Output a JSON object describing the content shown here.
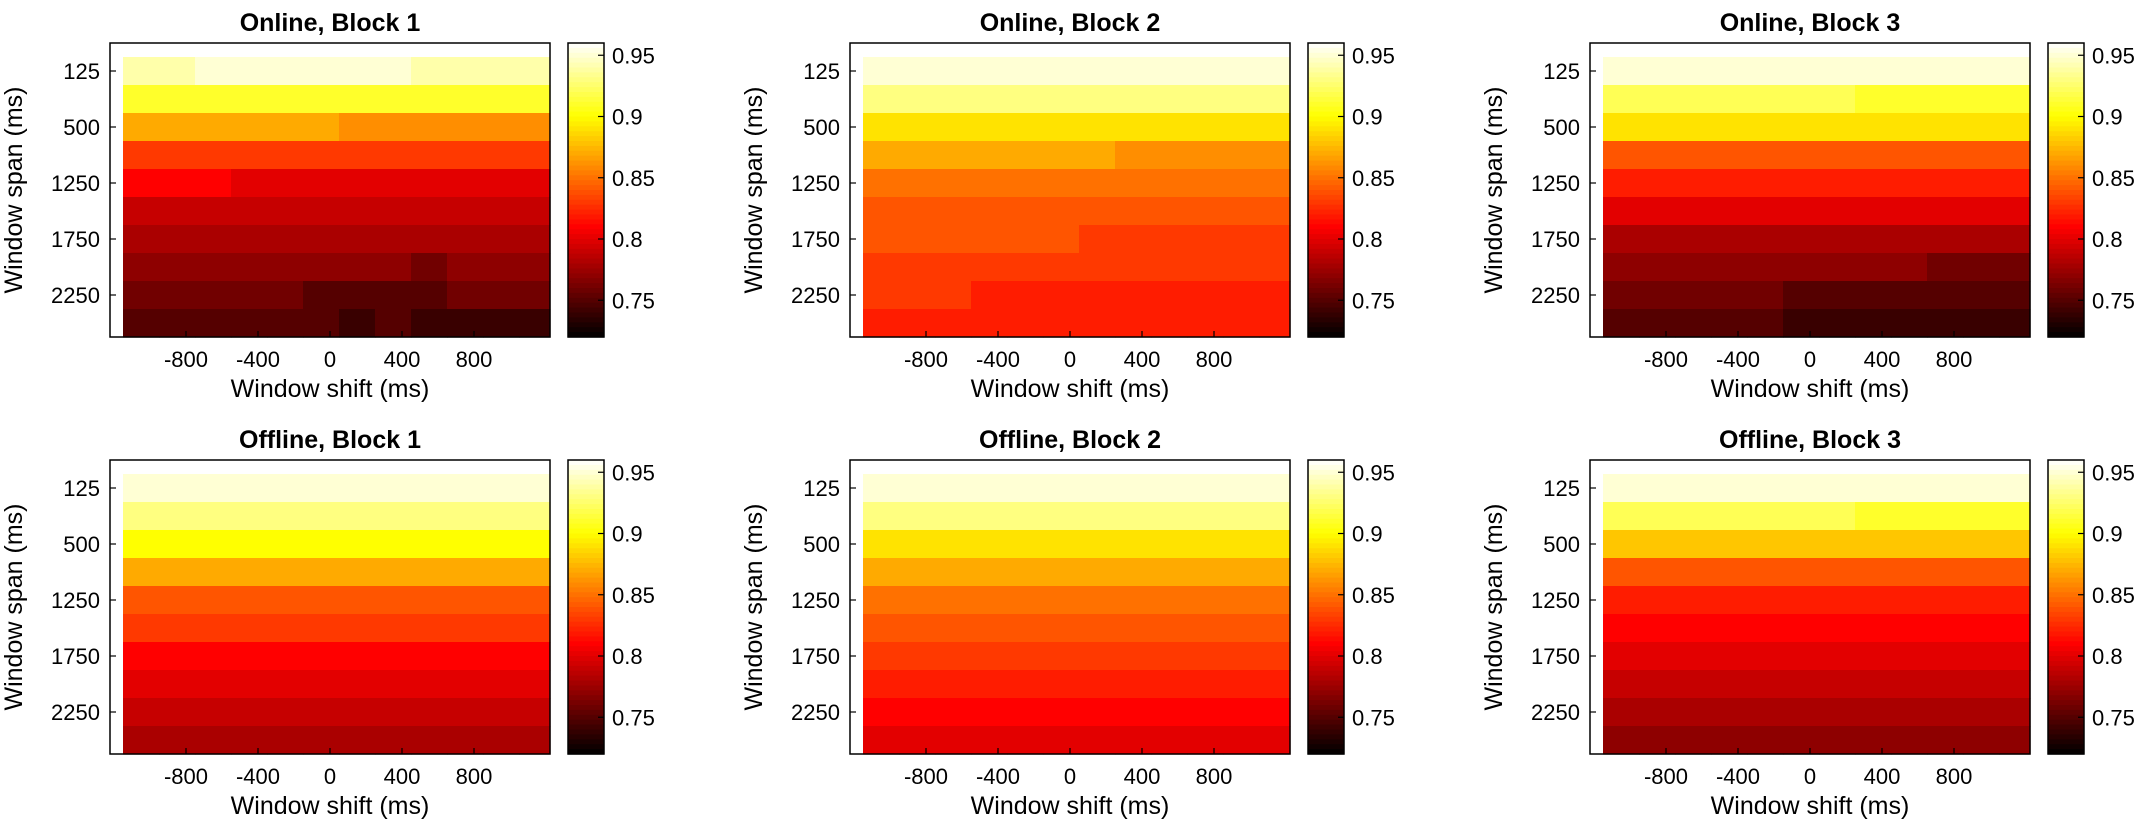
{
  "chart_data": [
    {
      "type": "heatmap",
      "title": "Online, Block 1",
      "xlabel": "Window shift (ms)",
      "ylabel": "Window span (ms)",
      "x_ticks": [
        "-800",
        "-400",
        "0",
        "400",
        "800"
      ],
      "y_ticks": [
        "125",
        "500",
        "1250",
        "1750",
        "2250"
      ],
      "colorbar_ticks": [
        "0.95",
        "0.9",
        "0.85",
        "0.8",
        "0.75"
      ],
      "colormap": "hot",
      "clim": [
        0.72,
        0.96
      ],
      "x": [
        -1050,
        -850,
        -650,
        -450,
        -250,
        -50,
        150,
        350,
        550,
        750,
        950,
        1150
      ],
      "rows": [
        [
          0.96,
          0.96,
          0.96,
          0.96,
          0.96,
          0.96,
          0.96,
          0.96,
          0.96,
          0.96,
          0.96,
          0.96
        ],
        [
          0.94,
          0.94,
          0.95,
          0.95,
          0.95,
          0.95,
          0.95,
          0.95,
          0.94,
          0.94,
          0.94,
          0.94
        ],
        [
          0.91,
          0.91,
          0.91,
          0.91,
          0.91,
          0.91,
          0.91,
          0.91,
          0.91,
          0.91,
          0.91,
          0.91
        ],
        [
          0.87,
          0.87,
          0.87,
          0.87,
          0.87,
          0.87,
          0.86,
          0.86,
          0.86,
          0.86,
          0.86,
          0.86
        ],
        [
          0.83,
          0.83,
          0.83,
          0.83,
          0.83,
          0.83,
          0.83,
          0.83,
          0.83,
          0.83,
          0.83,
          0.83
        ],
        [
          0.81,
          0.81,
          0.81,
          0.8,
          0.8,
          0.8,
          0.8,
          0.8,
          0.8,
          0.8,
          0.8,
          0.8
        ],
        [
          0.79,
          0.79,
          0.79,
          0.79,
          0.79,
          0.79,
          0.79,
          0.79,
          0.79,
          0.79,
          0.79,
          0.79
        ],
        [
          0.78,
          0.78,
          0.78,
          0.78,
          0.78,
          0.78,
          0.78,
          0.78,
          0.78,
          0.78,
          0.78,
          0.78
        ],
        [
          0.77,
          0.77,
          0.77,
          0.77,
          0.77,
          0.77,
          0.77,
          0.77,
          0.76,
          0.77,
          0.77,
          0.77
        ],
        [
          0.76,
          0.76,
          0.76,
          0.76,
          0.76,
          0.75,
          0.75,
          0.75,
          0.75,
          0.76,
          0.76,
          0.76
        ],
        [
          0.75,
          0.75,
          0.75,
          0.75,
          0.75,
          0.75,
          0.74,
          0.75,
          0.74,
          0.74,
          0.74,
          0.74
        ]
      ]
    },
    {
      "type": "heatmap",
      "title": "Online, Block 2",
      "xlabel": "Window shift (ms)",
      "ylabel": "Window span (ms)",
      "x_ticks": [
        "-800",
        "-400",
        "0",
        "400",
        "800"
      ],
      "y_ticks": [
        "125",
        "500",
        "1250",
        "1750",
        "2250"
      ],
      "colorbar_ticks": [
        "0.95",
        "0.9",
        "0.85",
        "0.8",
        "0.75"
      ],
      "colormap": "hot",
      "clim": [
        0.72,
        0.96
      ],
      "x": [
        -1050,
        -850,
        -650,
        -450,
        -250,
        -50,
        150,
        350,
        550,
        750,
        950,
        1150
      ],
      "rows": [
        [
          0.96,
          0.96,
          0.96,
          0.96,
          0.96,
          0.96,
          0.96,
          0.96,
          0.96,
          0.96,
          0.96,
          0.96
        ],
        [
          0.95,
          0.95,
          0.95,
          0.95,
          0.95,
          0.95,
          0.95,
          0.95,
          0.95,
          0.95,
          0.95,
          0.95
        ],
        [
          0.93,
          0.93,
          0.93,
          0.93,
          0.93,
          0.93,
          0.93,
          0.93,
          0.93,
          0.93,
          0.93,
          0.93
        ],
        [
          0.89,
          0.89,
          0.89,
          0.89,
          0.89,
          0.89,
          0.89,
          0.89,
          0.89,
          0.89,
          0.89,
          0.89
        ],
        [
          0.87,
          0.87,
          0.87,
          0.87,
          0.87,
          0.87,
          0.87,
          0.86,
          0.86,
          0.86,
          0.86,
          0.86
        ],
        [
          0.85,
          0.85,
          0.85,
          0.85,
          0.85,
          0.85,
          0.85,
          0.85,
          0.85,
          0.85,
          0.85,
          0.85
        ],
        [
          0.84,
          0.84,
          0.84,
          0.84,
          0.84,
          0.84,
          0.84,
          0.84,
          0.84,
          0.84,
          0.84,
          0.84
        ],
        [
          0.84,
          0.84,
          0.84,
          0.84,
          0.84,
          0.84,
          0.83,
          0.83,
          0.83,
          0.83,
          0.83,
          0.83
        ],
        [
          0.83,
          0.83,
          0.83,
          0.83,
          0.83,
          0.83,
          0.83,
          0.83,
          0.83,
          0.83,
          0.83,
          0.83
        ],
        [
          0.83,
          0.83,
          0.83,
          0.82,
          0.82,
          0.82,
          0.82,
          0.82,
          0.82,
          0.82,
          0.82,
          0.82
        ],
        [
          0.82,
          0.82,
          0.82,
          0.82,
          0.82,
          0.82,
          0.82,
          0.82,
          0.82,
          0.82,
          0.82,
          0.82
        ]
      ]
    },
    {
      "type": "heatmap",
      "title": "Online, Block 3",
      "xlabel": "Window shift (ms)",
      "ylabel": "Window span (ms)",
      "x_ticks": [
        "-800",
        "-400",
        "0",
        "400",
        "800"
      ],
      "y_ticks": [
        "125",
        "500",
        "1250",
        "1750",
        "2250"
      ],
      "colorbar_ticks": [
        "0.95",
        "0.9",
        "0.85",
        "0.8",
        "0.75"
      ],
      "colormap": "hot",
      "clim": [
        0.72,
        0.96
      ],
      "x": [
        -1050,
        -850,
        -650,
        -450,
        -250,
        -50,
        150,
        350,
        550,
        750,
        950,
        1150
      ],
      "rows": [
        [
          0.96,
          0.96,
          0.96,
          0.96,
          0.96,
          0.96,
          0.96,
          0.96,
          0.96,
          0.96,
          0.96,
          0.96
        ],
        [
          0.95,
          0.95,
          0.95,
          0.95,
          0.95,
          0.95,
          0.95,
          0.95,
          0.95,
          0.95,
          0.95,
          0.95
        ],
        [
          0.92,
          0.92,
          0.92,
          0.92,
          0.92,
          0.92,
          0.92,
          0.91,
          0.91,
          0.91,
          0.91,
          0.91
        ],
        [
          0.89,
          0.89,
          0.89,
          0.89,
          0.89,
          0.89,
          0.89,
          0.89,
          0.89,
          0.89,
          0.89,
          0.89
        ],
        [
          0.84,
          0.84,
          0.84,
          0.84,
          0.84,
          0.84,
          0.84,
          0.84,
          0.84,
          0.84,
          0.84,
          0.84
        ],
        [
          0.82,
          0.82,
          0.82,
          0.82,
          0.82,
          0.82,
          0.82,
          0.82,
          0.82,
          0.82,
          0.82,
          0.82
        ],
        [
          0.8,
          0.8,
          0.8,
          0.8,
          0.8,
          0.8,
          0.8,
          0.8,
          0.8,
          0.8,
          0.8,
          0.8
        ],
        [
          0.78,
          0.78,
          0.78,
          0.78,
          0.78,
          0.78,
          0.78,
          0.78,
          0.78,
          0.78,
          0.78,
          0.78
        ],
        [
          0.77,
          0.77,
          0.77,
          0.77,
          0.77,
          0.77,
          0.77,
          0.77,
          0.77,
          0.76,
          0.76,
          0.76
        ],
        [
          0.76,
          0.76,
          0.76,
          0.76,
          0.76,
          0.75,
          0.75,
          0.75,
          0.75,
          0.75,
          0.75,
          0.75
        ],
        [
          0.75,
          0.75,
          0.75,
          0.75,
          0.75,
          0.74,
          0.74,
          0.74,
          0.74,
          0.74,
          0.74,
          0.74
        ]
      ]
    },
    {
      "type": "heatmap",
      "title": "Offline, Block 1",
      "xlabel": "Window shift (ms)",
      "ylabel": "Window span (ms)",
      "x_ticks": [
        "-800",
        "-400",
        "0",
        "400",
        "800"
      ],
      "y_ticks": [
        "125",
        "500",
        "1250",
        "1750",
        "2250"
      ],
      "colorbar_ticks": [
        "0.95",
        "0.9",
        "0.85",
        "0.8",
        "0.75"
      ],
      "colormap": "hot",
      "clim": [
        0.72,
        0.96
      ],
      "x": [
        -1050,
        -850,
        -650,
        -450,
        -250,
        -50,
        150,
        350,
        550,
        750,
        950,
        1150
      ],
      "rows": [
        [
          0.96,
          0.96,
          0.96,
          0.96,
          0.96,
          0.96,
          0.96,
          0.96,
          0.96,
          0.96,
          0.96,
          0.96
        ],
        [
          0.95,
          0.95,
          0.95,
          0.95,
          0.95,
          0.95,
          0.95,
          0.95,
          0.95,
          0.95,
          0.95,
          0.95
        ],
        [
          0.93,
          0.93,
          0.93,
          0.93,
          0.93,
          0.93,
          0.93,
          0.93,
          0.93,
          0.93,
          0.93,
          0.93
        ],
        [
          0.9,
          0.9,
          0.9,
          0.9,
          0.9,
          0.9,
          0.9,
          0.9,
          0.9,
          0.9,
          0.9,
          0.9
        ],
        [
          0.87,
          0.87,
          0.87,
          0.87,
          0.87,
          0.87,
          0.87,
          0.87,
          0.87,
          0.87,
          0.87,
          0.87
        ],
        [
          0.84,
          0.84,
          0.84,
          0.84,
          0.84,
          0.84,
          0.84,
          0.84,
          0.84,
          0.84,
          0.84,
          0.84
        ],
        [
          0.83,
          0.83,
          0.83,
          0.83,
          0.83,
          0.83,
          0.83,
          0.83,
          0.83,
          0.83,
          0.83,
          0.83
        ],
        [
          0.81,
          0.81,
          0.81,
          0.81,
          0.81,
          0.81,
          0.81,
          0.81,
          0.81,
          0.81,
          0.81,
          0.81
        ],
        [
          0.8,
          0.8,
          0.8,
          0.8,
          0.8,
          0.8,
          0.8,
          0.8,
          0.8,
          0.8,
          0.8,
          0.8
        ],
        [
          0.79,
          0.79,
          0.79,
          0.79,
          0.79,
          0.79,
          0.79,
          0.79,
          0.79,
          0.79,
          0.79,
          0.79
        ],
        [
          0.78,
          0.78,
          0.78,
          0.78,
          0.78,
          0.78,
          0.78,
          0.78,
          0.78,
          0.78,
          0.78,
          0.78
        ]
      ]
    },
    {
      "type": "heatmap",
      "title": "Offline, Block 2",
      "xlabel": "Window shift (ms)",
      "ylabel": "Window span (ms)",
      "x_ticks": [
        "-800",
        "-400",
        "0",
        "400",
        "800"
      ],
      "y_ticks": [
        "125",
        "500",
        "1250",
        "1750",
        "2250"
      ],
      "colorbar_ticks": [
        "0.95",
        "0.9",
        "0.85",
        "0.8",
        "0.75"
      ],
      "colormap": "hot",
      "clim": [
        0.72,
        0.96
      ],
      "x": [
        -1050,
        -850,
        -650,
        -450,
        -250,
        -50,
        150,
        350,
        550,
        750,
        950,
        1150
      ],
      "rows": [
        [
          0.96,
          0.96,
          0.96,
          0.96,
          0.96,
          0.96,
          0.96,
          0.96,
          0.96,
          0.96,
          0.96,
          0.96
        ],
        [
          0.95,
          0.95,
          0.95,
          0.95,
          0.95,
          0.95,
          0.95,
          0.95,
          0.95,
          0.95,
          0.95,
          0.95
        ],
        [
          0.93,
          0.93,
          0.93,
          0.93,
          0.93,
          0.93,
          0.93,
          0.93,
          0.93,
          0.93,
          0.93,
          0.93
        ],
        [
          0.89,
          0.89,
          0.89,
          0.89,
          0.89,
          0.89,
          0.89,
          0.89,
          0.89,
          0.89,
          0.89,
          0.89
        ],
        [
          0.87,
          0.87,
          0.87,
          0.87,
          0.87,
          0.87,
          0.87,
          0.87,
          0.87,
          0.87,
          0.87,
          0.87
        ],
        [
          0.85,
          0.85,
          0.85,
          0.85,
          0.85,
          0.85,
          0.85,
          0.85,
          0.85,
          0.85,
          0.85,
          0.85
        ],
        [
          0.84,
          0.84,
          0.84,
          0.84,
          0.84,
          0.84,
          0.84,
          0.84,
          0.84,
          0.84,
          0.84,
          0.84
        ],
        [
          0.83,
          0.83,
          0.83,
          0.83,
          0.83,
          0.83,
          0.83,
          0.83,
          0.83,
          0.83,
          0.83,
          0.83
        ],
        [
          0.82,
          0.82,
          0.82,
          0.82,
          0.82,
          0.82,
          0.82,
          0.82,
          0.82,
          0.82,
          0.82,
          0.82
        ],
        [
          0.81,
          0.81,
          0.81,
          0.81,
          0.81,
          0.81,
          0.81,
          0.81,
          0.81,
          0.81,
          0.81,
          0.81
        ],
        [
          0.8,
          0.8,
          0.8,
          0.8,
          0.8,
          0.8,
          0.8,
          0.8,
          0.8,
          0.8,
          0.8,
          0.8
        ]
      ]
    },
    {
      "type": "heatmap",
      "title": "Offline, Block 3",
      "xlabel": "Window shift (ms)",
      "ylabel": "Window span (ms)",
      "x_ticks": [
        "-800",
        "-400",
        "0",
        "400",
        "800"
      ],
      "y_ticks": [
        "125",
        "500",
        "1250",
        "1750",
        "2250"
      ],
      "colorbar_ticks": [
        "0.95",
        "0.9",
        "0.85",
        "0.8",
        "0.75"
      ],
      "colormap": "hot",
      "clim": [
        0.72,
        0.96
      ],
      "x": [
        -1050,
        -850,
        -650,
        -450,
        -250,
        -50,
        150,
        350,
        550,
        750,
        950,
        1150
      ],
      "rows": [
        [
          0.96,
          0.96,
          0.96,
          0.96,
          0.96,
          0.96,
          0.96,
          0.96,
          0.96,
          0.96,
          0.96,
          0.96
        ],
        [
          0.95,
          0.95,
          0.95,
          0.95,
          0.95,
          0.95,
          0.95,
          0.95,
          0.95,
          0.95,
          0.95,
          0.95
        ],
        [
          0.92,
          0.92,
          0.92,
          0.92,
          0.92,
          0.92,
          0.92,
          0.91,
          0.91,
          0.91,
          0.91,
          0.91
        ],
        [
          0.88,
          0.88,
          0.88,
          0.88,
          0.88,
          0.88,
          0.88,
          0.88,
          0.88,
          0.88,
          0.88,
          0.88
        ],
        [
          0.84,
          0.84,
          0.84,
          0.84,
          0.84,
          0.84,
          0.84,
          0.84,
          0.84,
          0.84,
          0.84,
          0.84
        ],
        [
          0.82,
          0.82,
          0.82,
          0.82,
          0.82,
          0.82,
          0.82,
          0.82,
          0.82,
          0.82,
          0.82,
          0.82
        ],
        [
          0.81,
          0.81,
          0.81,
          0.81,
          0.81,
          0.81,
          0.81,
          0.81,
          0.81,
          0.81,
          0.81,
          0.81
        ],
        [
          0.8,
          0.8,
          0.8,
          0.8,
          0.8,
          0.8,
          0.8,
          0.8,
          0.8,
          0.8,
          0.8,
          0.8
        ],
        [
          0.79,
          0.79,
          0.79,
          0.79,
          0.79,
          0.79,
          0.79,
          0.79,
          0.79,
          0.79,
          0.79,
          0.79
        ],
        [
          0.78,
          0.78,
          0.78,
          0.78,
          0.78,
          0.78,
          0.78,
          0.78,
          0.78,
          0.78,
          0.78,
          0.78
        ],
        [
          0.77,
          0.77,
          0.77,
          0.77,
          0.77,
          0.77,
          0.77,
          0.77,
          0.77,
          0.77,
          0.77,
          0.77
        ]
      ]
    }
  ]
}
